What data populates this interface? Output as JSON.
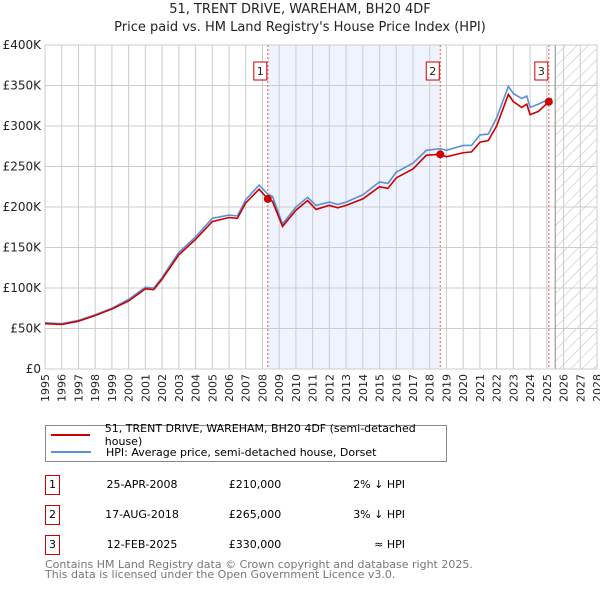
{
  "title": "51, TRENT DRIVE, WAREHAM, BH20 4DF",
  "subtitle": "Price paid vs. HM Land Registry's House Price Index (HPI)",
  "chart_data": {
    "type": "line",
    "ylim": [
      0,
      400000
    ],
    "xlim": [
      1995,
      2028
    ],
    "yticks": [
      {
        "v": 0,
        "label": "£0"
      },
      {
        "v": 50000,
        "label": "£50K"
      },
      {
        "v": 100000,
        "label": "£100K"
      },
      {
        "v": 150000,
        "label": "£150K"
      },
      {
        "v": 200000,
        "label": "£200K"
      },
      {
        "v": 250000,
        "label": "£250K"
      },
      {
        "v": 300000,
        "label": "£300K"
      },
      {
        "v": 350000,
        "label": "£350K"
      },
      {
        "v": 400000,
        "label": "£400K"
      }
    ],
    "xticks": [
      "1995",
      "1996",
      "1997",
      "1998",
      "1999",
      "2000",
      "2001",
      "2002",
      "2003",
      "2004",
      "2005",
      "2006",
      "2007",
      "2008",
      "2009",
      "2010",
      "2011",
      "2012",
      "2013",
      "2014",
      "2015",
      "2016",
      "2017",
      "2018",
      "2019",
      "2020",
      "2021",
      "2022",
      "2023",
      "2024",
      "2025",
      "2026",
      "2027",
      "2028"
    ],
    "shaded_range": [
      2008.32,
      2018.63
    ],
    "forecast_from": 2025.5,
    "series": [
      {
        "name": "51, TRENT DRIVE, WAREHAM, BH20 4DF (semi-detached house)",
        "color": "#cc0000",
        "x": [
          1995,
          1996,
          1997,
          1998,
          1999,
          2000,
          2001,
          2001.5,
          2002,
          2003,
          2004,
          2005,
          2006,
          2006.5,
          2007,
          2007.8,
          2008.32,
          2008.6,
          2009.2,
          2010,
          2010.7,
          2011.2,
          2012,
          2012.5,
          2013,
          2014,
          2015,
          2015.5,
          2016,
          2017,
          2017.8,
          2018.63,
          2019,
          2020,
          2020.5,
          2021,
          2021.5,
          2022,
          2022.7,
          2023,
          2023.5,
          2023.8,
          2024,
          2024.5,
          2025.12,
          2025.3
        ],
        "y": [
          56000,
          55000,
          59000,
          66000,
          74000,
          84000,
          99000,
          98000,
          111000,
          141000,
          160000,
          182000,
          187000,
          186000,
          205000,
          222000,
          210000,
          207000,
          176000,
          196000,
          208000,
          197000,
          202000,
          199000,
          202000,
          210000,
          225000,
          223000,
          236000,
          247000,
          264000,
          265000,
          262000,
          267000,
          268000,
          280000,
          282000,
          300000,
          339000,
          330000,
          323000,
          327000,
          314000,
          318000,
          330000,
          332000
        ]
      },
      {
        "name": "HPI: Average price, semi-detached house, Dorset",
        "color": "#5b8fd6",
        "x": [
          1995,
          1996,
          1997,
          1998,
          1999,
          2000,
          2001,
          2001.5,
          2002,
          2003,
          2004,
          2005,
          2006,
          2006.5,
          2007,
          2007.8,
          2008.32,
          2008.6,
          2009.2,
          2010,
          2010.7,
          2011.2,
          2012,
          2012.5,
          2013,
          2014,
          2015,
          2015.5,
          2016,
          2017,
          2017.8,
          2018.63,
          2019,
          2020,
          2020.5,
          2021,
          2021.5,
          2022,
          2022.7,
          2023,
          2023.5,
          2023.8,
          2024,
          2024.5,
          2025.12,
          2025.3
        ],
        "y": [
          57000,
          56000,
          60000,
          67000,
          75000,
          86000,
          101000,
          100000,
          113000,
          144000,
          163000,
          186000,
          190000,
          189000,
          209000,
          227000,
          216000,
          213000,
          179000,
          200000,
          212000,
          202000,
          206000,
          203000,
          206000,
          215000,
          231000,
          229000,
          243000,
          254000,
          270000,
          272000,
          270000,
          276000,
          276000,
          289000,
          290000,
          310000,
          349000,
          340000,
          334000,
          337000,
          323000,
          327000,
          333000,
          334000
        ]
      }
    ],
    "sales": [
      {
        "n": "1",
        "x": 2008.32,
        "y": 210000
      },
      {
        "n": "2",
        "x": 2018.63,
        "y": 265000
      },
      {
        "n": "3",
        "x": 2025.12,
        "y": 330000
      }
    ]
  },
  "legend": [
    "51, TRENT DRIVE, WAREHAM, BH20 4DF (semi-detached house)",
    "HPI: Average price, semi-detached house, Dorset"
  ],
  "table": [
    {
      "n": "1",
      "date": "25-APR-2008",
      "price": "£210,000",
      "hpi": "2% ↓ HPI"
    },
    {
      "n": "2",
      "date": "17-AUG-2018",
      "price": "£265,000",
      "hpi": "3% ↓ HPI"
    },
    {
      "n": "3",
      "date": "12-FEB-2025",
      "price": "£330,000",
      "hpi": "≈ HPI"
    }
  ],
  "footer": [
    "Contains HM Land Registry data © Crown copyright and database right 2025.",
    "This data is licensed under the Open Government Licence v3.0."
  ]
}
